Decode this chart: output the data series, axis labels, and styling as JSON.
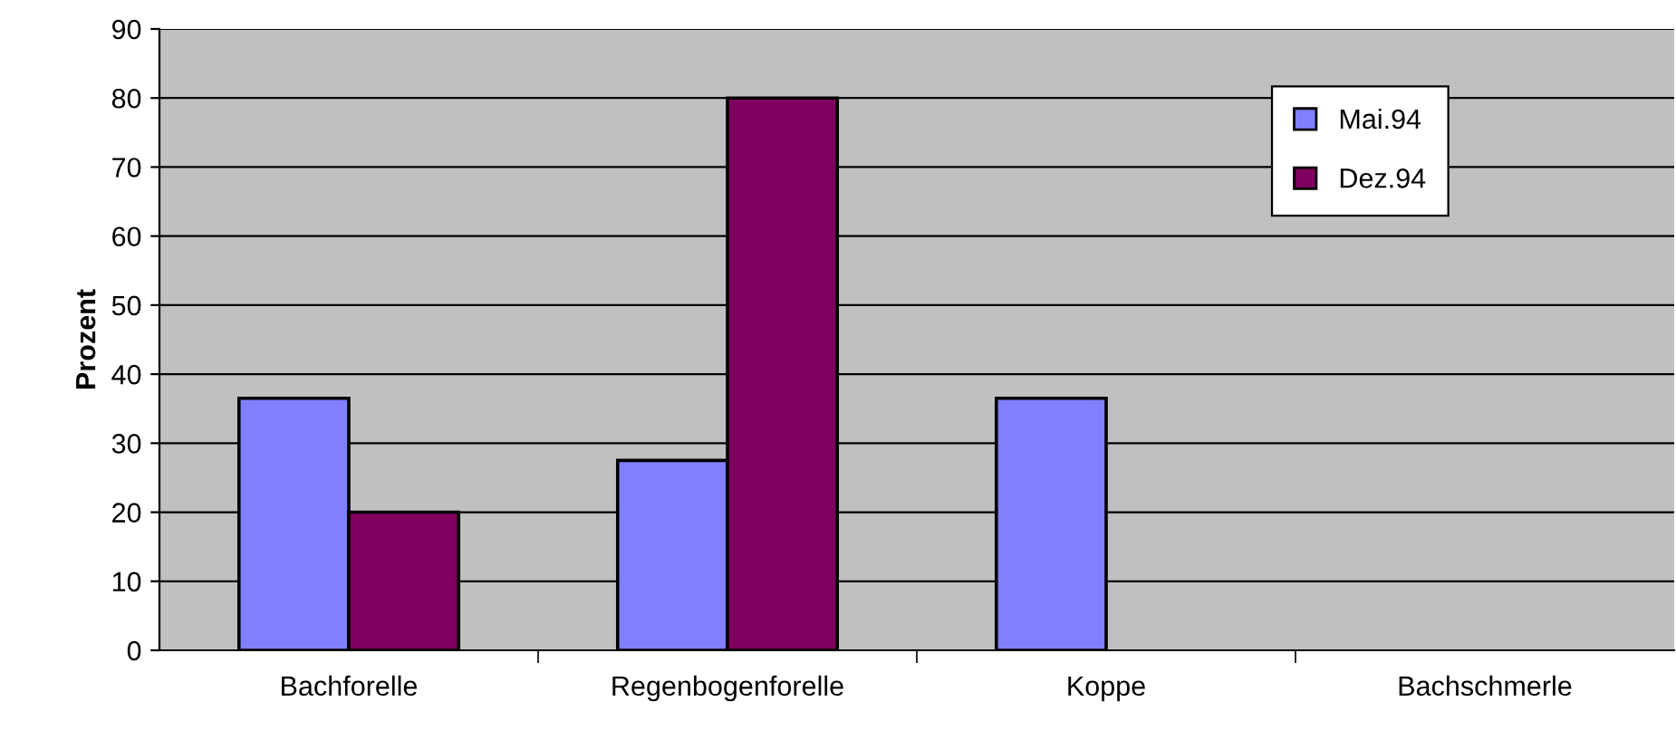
{
  "chart_data": {
    "type": "bar",
    "ylabel": "Prozent",
    "categories": [
      "Bachforelle",
      "Regenbogenforelle",
      "Koppe",
      "Bachschmerle"
    ],
    "series": [
      {
        "name": "Mai.94",
        "color": "#8080ff",
        "values": [
          36.5,
          27.5,
          36.5,
          null
        ]
      },
      {
        "name": "Dez.94",
        "color": "#800060",
        "values": [
          20,
          80,
          null,
          null
        ]
      }
    ],
    "ylim": [
      0,
      90
    ],
    "yticks": [
      0,
      10,
      20,
      30,
      40,
      50,
      60,
      70,
      80,
      90
    ],
    "grid": "y",
    "legend": "top right"
  }
}
